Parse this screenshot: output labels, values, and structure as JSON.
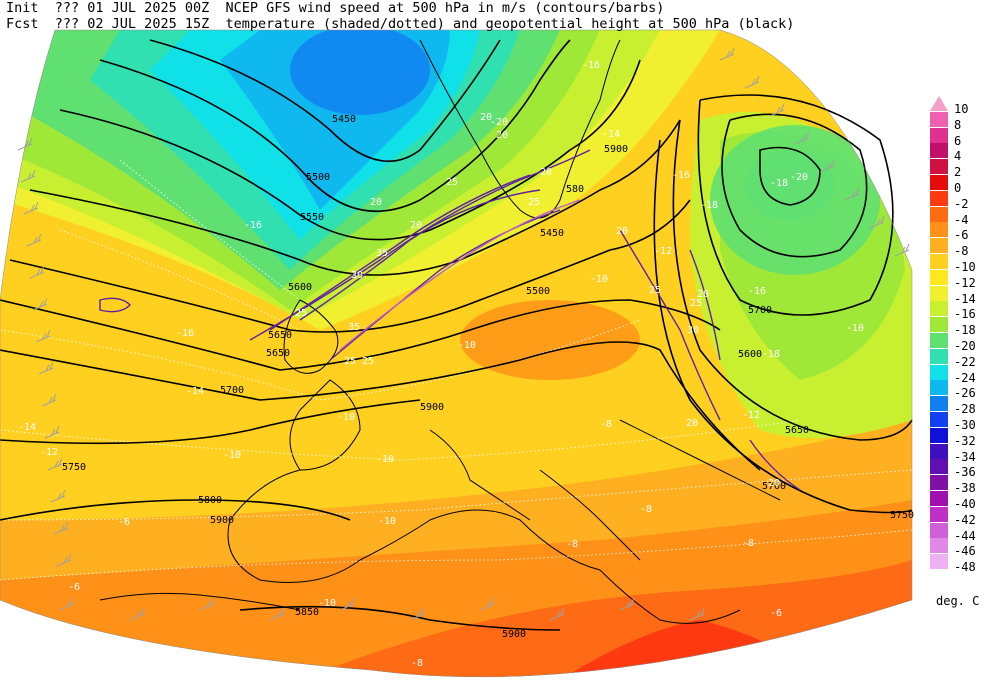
{
  "header": {
    "line1_prefix": "Init",
    "line1_time": "??? 01 JUL 2025 00Z",
    "line1_desc": "NCEP GFS wind speed at 500 hPa in m/s (contours/barbs)",
    "line2_prefix": "Fcst",
    "line2_time": "??? 02 JUL 2025 15Z",
    "line2_desc": "temperature (shaded/dotted) and geopotential height at 500 hPa (black)"
  },
  "legend": {
    "unit": "deg. C",
    "levels": [
      {
        "label": "10",
        "color": "#f4a0c8"
      },
      {
        "label": "8",
        "color": "#f060b0"
      },
      {
        "label": "6",
        "color": "#e03090"
      },
      {
        "label": "4",
        "color": "#c0106a"
      },
      {
        "label": "2",
        "color": "#d01040"
      },
      {
        "label": "0",
        "color": "#e80a0a"
      },
      {
        "label": "-2",
        "color": "#ff3a10"
      },
      {
        "label": "-4",
        "color": "#ff6a14"
      },
      {
        "label": "-6",
        "color": "#ff9018"
      },
      {
        "label": "-8",
        "color": "#ffb020"
      },
      {
        "label": "-10",
        "color": "#ffd020"
      },
      {
        "label": "-12",
        "color": "#ffe81c"
      },
      {
        "label": "-14",
        "color": "#f0f030"
      },
      {
        "label": "-16",
        "color": "#c8f030"
      },
      {
        "label": "-18",
        "color": "#a0e838"
      },
      {
        "label": "-20",
        "color": "#60e070"
      },
      {
        "label": "-22",
        "color": "#30e0b0"
      },
      {
        "label": "-24",
        "color": "#10e0e8"
      },
      {
        "label": "-26",
        "color": "#10b8f0"
      },
      {
        "label": "-28",
        "color": "#1080f0"
      },
      {
        "label": "-30",
        "color": "#1040f0"
      },
      {
        "label": "-32",
        "color": "#1010d8"
      },
      {
        "label": "-34",
        "color": "#4010c0"
      },
      {
        "label": "-36",
        "color": "#6010b0"
      },
      {
        "label": "-38",
        "color": "#8010a8"
      },
      {
        "label": "-40",
        "color": "#a010b0"
      },
      {
        "label": "-42",
        "color": "#c030c8"
      },
      {
        "label": "-44",
        "color": "#d060d8"
      },
      {
        "label": "-46",
        "color": "#e088e8"
      },
      {
        "label": "-48",
        "color": "#f0b0f4"
      }
    ]
  },
  "height_labels": [
    {
      "text": "5450"
    },
    {
      "text": "5500"
    },
    {
      "text": "5550"
    },
    {
      "text": "5600"
    },
    {
      "text": "5650"
    },
    {
      "text": "5700"
    },
    {
      "text": "5750"
    },
    {
      "text": "5800"
    },
    {
      "text": "5850"
    },
    {
      "text": "5900"
    },
    {
      "text": "5900"
    },
    {
      "text": "5900"
    },
    {
      "text": "5700"
    },
    {
      "text": "5600"
    },
    {
      "text": "5650"
    },
    {
      "text": "5700"
    },
    {
      "text": "5750"
    },
    {
      "text": "580"
    },
    {
      "text": "5450"
    },
    {
      "text": "5500"
    },
    {
      "text": "5650"
    },
    {
      "text": "5900"
    }
  ],
  "temp_labels": [
    {
      "text": "-14"
    },
    {
      "text": "-12"
    },
    {
      "text": "-16"
    },
    {
      "text": "-16"
    },
    {
      "text": "-14"
    },
    {
      "text": "-10"
    },
    {
      "text": "-10"
    },
    {
      "text": "-10"
    },
    {
      "text": "-8"
    },
    {
      "text": "-6"
    },
    {
      "text": "-6"
    },
    {
      "text": "-8"
    },
    {
      "text": "-10"
    },
    {
      "text": "-10"
    },
    {
      "text": "-8"
    },
    {
      "text": "-8"
    },
    {
      "text": "-6"
    },
    {
      "text": "-8"
    },
    {
      "text": "-16"
    },
    {
      "text": "-18"
    },
    {
      "text": "-20"
    },
    {
      "text": "-16"
    },
    {
      "text": "-18"
    },
    {
      "text": "-20"
    },
    {
      "text": "-16"
    },
    {
      "text": "-10"
    },
    {
      "text": "-12"
    },
    {
      "text": "-10"
    },
    {
      "text": "-14"
    },
    {
      "text": "-12"
    },
    {
      "text": "-18"
    },
    {
      "text": "-10"
    }
  ],
  "wind_labels": [
    {
      "text": "20"
    },
    {
      "text": "20"
    },
    {
      "text": "25"
    },
    {
      "text": "20"
    },
    {
      "text": "25"
    },
    {
      "text": "35"
    },
    {
      "text": "30"
    },
    {
      "text": "25"
    },
    {
      "text": "35"
    },
    {
      "text": "25"
    },
    {
      "text": "25"
    },
    {
      "text": "20"
    },
    {
      "text": "25"
    },
    {
      "text": "30"
    },
    {
      "text": "20"
    },
    {
      "text": "25"
    },
    {
      "text": "20"
    },
    {
      "text": "20"
    },
    {
      "text": "20"
    },
    {
      "text": "20"
    }
  ],
  "colors": {
    "height_contour": "#000000",
    "wind_contour": "#6020a0",
    "temp_dotted": "#ffffff",
    "coastline": "#000000",
    "barb": "#a0a0a0"
  }
}
